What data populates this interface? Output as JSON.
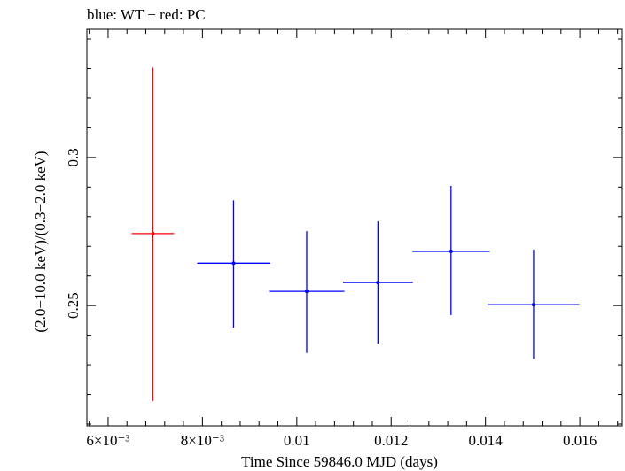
{
  "chart_data": {
    "type": "scatter",
    "title": "blue: WT − red: PC",
    "xlabel": "Time Since 59846.0 MJD (days)",
    "ylabel": "(2.0−10.0 keV)/(0.3−2.0 keV)",
    "xlim": [
      0.00555,
      0.0169
    ],
    "ylim": [
      0.2094,
      0.3433
    ],
    "x_ticks": [
      {
        "value": 0.006,
        "label": "6×10⁻³"
      },
      {
        "value": 0.008,
        "label": "8×10⁻³"
      },
      {
        "value": 0.01,
        "label": "0.01"
      },
      {
        "value": 0.012,
        "label": "0.012"
      },
      {
        "value": 0.014,
        "label": "0.014"
      },
      {
        "value": 0.016,
        "label": "0.016"
      }
    ],
    "y_ticks": [
      {
        "value": 0.25,
        "label": "0.25"
      },
      {
        "value": 0.3,
        "label": "0.3"
      }
    ],
    "series": [
      {
        "color": "#ff0000",
        "points": [
          {
            "x": 0.00695,
            "xerr": 0.00045,
            "y": 0.2743,
            "ylow": 0.2178,
            "yhigh": 0.3303
          }
        ]
      },
      {
        "color": "#0000ff",
        "points": [
          {
            "x": 0.00866,
            "xerr": 0.00077,
            "y": 0.2643,
            "ylow": 0.2425,
            "yhigh": 0.2855
          },
          {
            "x": 0.01021,
            "xerr": 0.0008,
            "y": 0.2548,
            "ylow": 0.234,
            "yhigh": 0.2751
          },
          {
            "x": 0.01172,
            "xerr": 0.00074,
            "y": 0.2578,
            "ylow": 0.2372,
            "yhigh": 0.2784
          },
          {
            "x": 0.01327,
            "xerr": 0.00082,
            "y": 0.2683,
            "ylow": 0.2468,
            "yhigh": 0.2904
          },
          {
            "x": 0.01502,
            "xerr": 0.00097,
            "y": 0.2503,
            "ylow": 0.232,
            "yhigh": 0.2689
          }
        ]
      }
    ]
  }
}
